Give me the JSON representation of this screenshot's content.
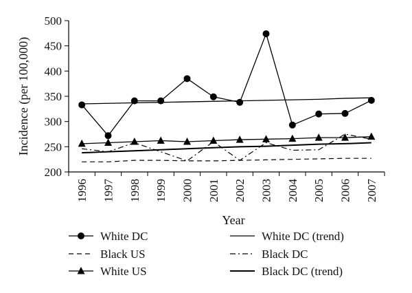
{
  "chart_data": {
    "type": "line",
    "title": "",
    "xlabel": "Year",
    "ylabel": "Incidence (per 100,000)",
    "ylim": [
      200,
      500
    ],
    "yticks": [
      200,
      250,
      300,
      350,
      400,
      450,
      500
    ],
    "categories": [
      "1996",
      "1997",
      "1998",
      "1999",
      "2000",
      "2001",
      "2002",
      "2003",
      "2004",
      "2005",
      "2006",
      "2007"
    ],
    "grid": false,
    "legend_position": "bottom",
    "series": [
      {
        "name": "White DC",
        "style": "solid-circle",
        "values": [
          333,
          272,
          341,
          341,
          385,
          349,
          338,
          474,
          293,
          315,
          316,
          342
        ]
      },
      {
        "name": "White DC (trend)",
        "style": "solid-thin",
        "values": [
          335,
          336,
          337,
          338,
          339,
          340,
          341,
          342,
          343,
          344,
          346,
          347
        ]
      },
      {
        "name": "Black US",
        "style": "dashed",
        "values": [
          220,
          220,
          223,
          223,
          222,
          222,
          223,
          224,
          225,
          226,
          227,
          227
        ]
      },
      {
        "name": "Black DC",
        "style": "dash-dot",
        "values": [
          246,
          240,
          258,
          240,
          222,
          260,
          223,
          258,
          243,
          244,
          275,
          265
        ]
      },
      {
        "name": "White US",
        "style": "solid-triangle",
        "values": [
          256,
          258,
          260,
          262,
          260,
          262,
          264,
          265,
          266,
          268,
          268,
          270
        ]
      },
      {
        "name": "Black DC (trend)",
        "style": "solid-thick",
        "values": [
          238,
          240,
          242,
          244,
          246,
          248,
          250,
          251,
          253,
          255,
          256,
          258
        ]
      }
    ]
  }
}
